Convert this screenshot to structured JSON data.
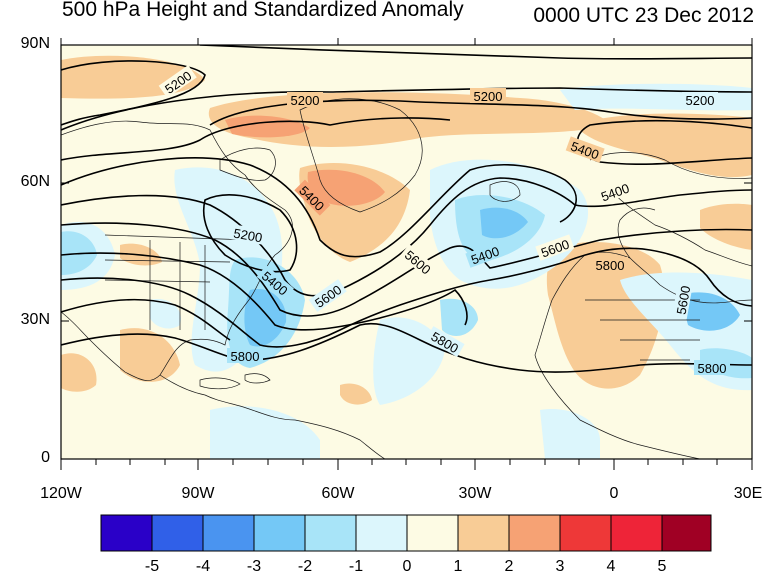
{
  "title": "500 hPa Height and Standardized Anomaly",
  "valid_time": "0000 UTC 23 Dec 2012",
  "lat_labels": [
    "90N",
    "60N",
    "30N",
    "0"
  ],
  "lon_labels": [
    "120W",
    "90W",
    "60W",
    "30W",
    "0",
    "30E"
  ],
  "colorbar": {
    "labels": [
      "-5",
      "-4",
      "-3",
      "-2",
      "-1",
      "0",
      "1",
      "2",
      "3",
      "4",
      "5"
    ],
    "colors": [
      "#2a00c8",
      "#3060e8",
      "#4a94f0",
      "#74c8f6",
      "#a8e4f8",
      "#dcf6fc",
      "#fdfbe4",
      "#f8cc96",
      "#f6a274",
      "#ee3838",
      "#ee2438",
      "#a00024"
    ]
  },
  "contour_labels": [
    {
      "text": "5200"
    },
    {
      "text": "5200"
    },
    {
      "text": "5200"
    },
    {
      "text": "5200"
    },
    {
      "text": "5400"
    },
    {
      "text": "5400"
    },
    {
      "text": "5400"
    },
    {
      "text": "5400"
    },
    {
      "text": "5200"
    },
    {
      "text": "5600"
    },
    {
      "text": "5600"
    },
    {
      "text": "5600"
    },
    {
      "text": "5800"
    },
    {
      "text": "5800"
    },
    {
      "text": "5800"
    },
    {
      "text": "5600"
    },
    {
      "text": "5800"
    },
    {
      "text": "5400"
    }
  ]
}
